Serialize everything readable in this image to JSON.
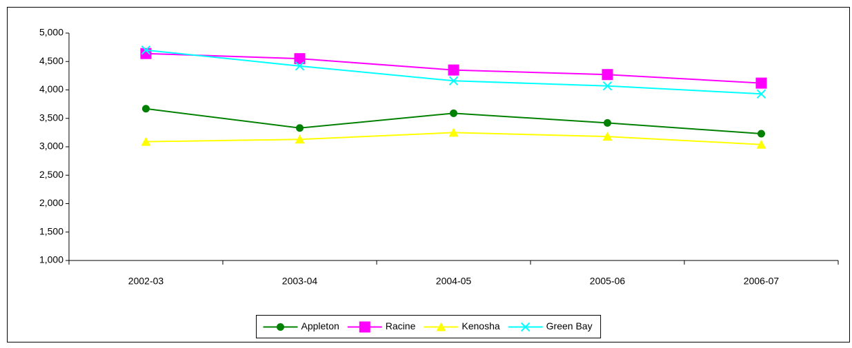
{
  "chart_data": {
    "type": "line",
    "categories": [
      "2002-03",
      "2003-04",
      "2004-05",
      "2005-06",
      "2006-07"
    ],
    "series": [
      {
        "name": "Appleton",
        "color": "#008000",
        "marker": "circle",
        "values": [
          3670,
          3330,
          3590,
          3420,
          3230
        ]
      },
      {
        "name": "Racine",
        "color": "#ff00ff",
        "marker": "square",
        "values": [
          4640,
          4550,
          4350,
          4270,
          4120
        ]
      },
      {
        "name": "Kenosha",
        "color": "#ffff00",
        "marker": "triangle",
        "values": [
          3090,
          3130,
          3250,
          3180,
          3040
        ]
      },
      {
        "name": "Green Bay",
        "color": "#00ffff",
        "marker": "x",
        "values": [
          4700,
          4420,
          4160,
          4070,
          3930
        ]
      }
    ],
    "ylim": [
      1000,
      5000
    ],
    "yticks": [
      {
        "value": 1000,
        "label": "1,000"
      },
      {
        "value": 1500,
        "label": "1,500"
      },
      {
        "value": 2000,
        "label": "2,000"
      },
      {
        "value": 2500,
        "label": "2,500"
      },
      {
        "value": 3000,
        "label": "3,000"
      },
      {
        "value": 3500,
        "label": "3,500"
      },
      {
        "value": 4000,
        "label": "4,000"
      },
      {
        "value": 4500,
        "label": "4,500"
      },
      {
        "value": 5000,
        "label": "5,000"
      }
    ],
    "grid": false,
    "legend": "bottom"
  }
}
